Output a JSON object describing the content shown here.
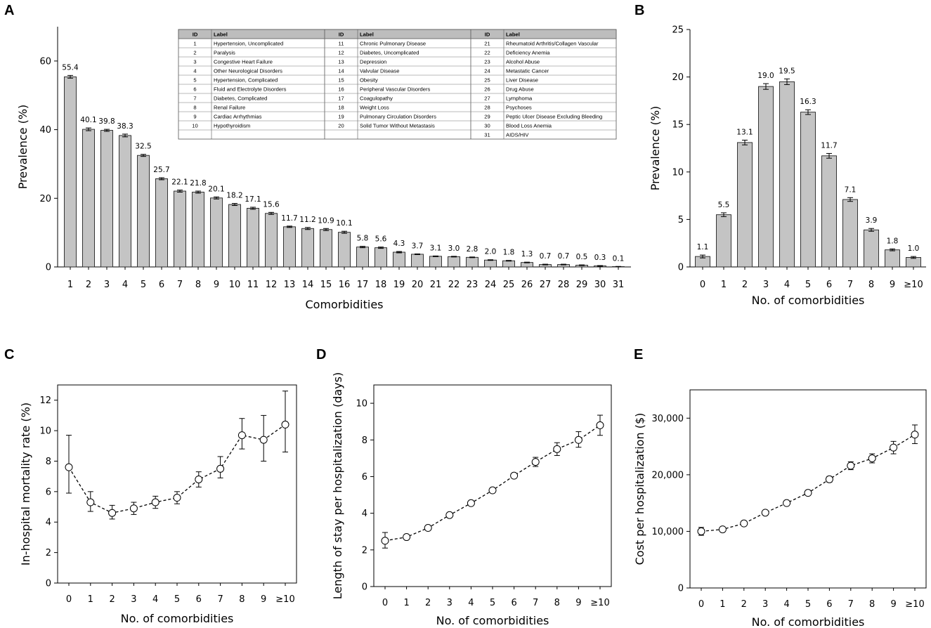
{
  "panels": {
    "A": "A",
    "B": "B",
    "C": "C",
    "D": "D",
    "E": "E"
  },
  "legend_table": {
    "columns": [
      {
        "id_header": "ID",
        "label_header": "Label"
      },
      {
        "id_header": "ID",
        "label_header": "Label"
      },
      {
        "id_header": "ID",
        "label_header": "Label"
      }
    ],
    "rows": [
      [
        {
          "id": "1",
          "label": "Hypertension, Uncomplicated"
        },
        {
          "id": "11",
          "label": "Chronic Pulmonary Disease"
        },
        {
          "id": "21",
          "label": "Rheumatoid Arthritis/Collagen Vascular"
        }
      ],
      [
        {
          "id": "2",
          "label": "Paralysis"
        },
        {
          "id": "12",
          "label": "Diabetes, Uncomplicated"
        },
        {
          "id": "22",
          "label": "Deficiency Anemia"
        }
      ],
      [
        {
          "id": "3",
          "label": "Congestive Heart Failure"
        },
        {
          "id": "13",
          "label": "Depression"
        },
        {
          "id": "23",
          "label": "Alcohol Abuse"
        }
      ],
      [
        {
          "id": "4",
          "label": "Other Neurological Disorders"
        },
        {
          "id": "14",
          "label": "Valvular Disease"
        },
        {
          "id": "24",
          "label": "Metastatic Cancer"
        }
      ],
      [
        {
          "id": "5",
          "label": "Hypertension, Complicated"
        },
        {
          "id": "15",
          "label": "Obesity"
        },
        {
          "id": "25",
          "label": "Liver Disease"
        }
      ],
      [
        {
          "id": "6",
          "label": "Fluid and Electrolyte Disorders"
        },
        {
          "id": "16",
          "label": "Peripheral Vascular Disorders"
        },
        {
          "id": "26",
          "label": "Drug Abuse"
        }
      ],
      [
        {
          "id": "7",
          "label": "Diabetes, Complicated"
        },
        {
          "id": "17",
          "label": "Coagulopathy"
        },
        {
          "id": "27",
          "label": "Lymphoma"
        }
      ],
      [
        {
          "id": "8",
          "label": "Renal Failure"
        },
        {
          "id": "18",
          "label": "Weight Loss"
        },
        {
          "id": "28",
          "label": "Psychoses"
        }
      ],
      [
        {
          "id": "9",
          "label": "Cardiac Arrhythmias"
        },
        {
          "id": "19",
          "label": "Pulmonary Circulation Disorders"
        },
        {
          "id": "29",
          "label": "Peptic Ulcer Disease Excluding Bleeding"
        }
      ],
      [
        {
          "id": "10",
          "label": "Hypothyroidism"
        },
        {
          "id": "20",
          "label": "Solid Tumor Without Metastasis"
        },
        {
          "id": "30",
          "label": "Blood Loss Anemia"
        }
      ],
      [
        {
          "id": "",
          "label": ""
        },
        {
          "id": "",
          "label": ""
        },
        {
          "id": "31",
          "label": "AIDS/HIV"
        }
      ]
    ]
  },
  "chart_data": [
    {
      "panel": "A",
      "type": "bar",
      "title": "",
      "xlabel": "Comorbidities",
      "ylabel": "Prevalence (%)",
      "ylim": [
        0,
        70
      ],
      "yticks": [
        0,
        20,
        40,
        60
      ],
      "categories": [
        "1",
        "2",
        "3",
        "4",
        "5",
        "6",
        "7",
        "8",
        "9",
        "10",
        "11",
        "12",
        "13",
        "14",
        "15",
        "16",
        "17",
        "18",
        "19",
        "20",
        "21",
        "22",
        "23",
        "24",
        "25",
        "26",
        "27",
        "28",
        "29",
        "30",
        "31"
      ],
      "values": [
        55.4,
        40.1,
        39.8,
        38.3,
        32.5,
        25.7,
        22.1,
        21.8,
        20.1,
        18.2,
        17.1,
        15.6,
        11.7,
        11.2,
        10.9,
        10.1,
        5.8,
        5.6,
        4.3,
        3.7,
        3.1,
        3.0,
        2.8,
        2.0,
        1.8,
        1.3,
        0.7,
        0.7,
        0.5,
        0.3,
        0.1
      ],
      "labels": [
        "55.4",
        "40.1",
        "39.8",
        "38.3",
        "32.5",
        "25.7",
        "22.1",
        "21.8",
        "20.1",
        "18.2",
        "17.1",
        "15.6",
        "11.7",
        "11.2",
        "10.9",
        "10.1",
        "5.8",
        "5.6",
        "4.3",
        "3.7",
        "3.1",
        "3.0",
        "2.8",
        "2.0",
        "1.8",
        "1.3",
        "0.7",
        "0.7",
        "0.5",
        "0.3",
        "0.1"
      ],
      "error": [
        0.4,
        0.4,
        0.3,
        0.4,
        0.3,
        0.3,
        0.3,
        0.3,
        0.3,
        0.3,
        0.3,
        0.3,
        0.2,
        0.3,
        0.3,
        0.3,
        0.2,
        0.2,
        0.2,
        0.1,
        0.1,
        0.1,
        0.1,
        0.1,
        0.1,
        0.1,
        0.1,
        0.1,
        0.1,
        0.1,
        0.05
      ]
    },
    {
      "panel": "B",
      "type": "bar",
      "title": "",
      "xlabel": "No. of comorbidities",
      "ylabel": "Prevalence (%)",
      "ylim": [
        0,
        25
      ],
      "yticks": [
        0,
        5,
        10,
        15,
        20,
        25
      ],
      "categories": [
        "0",
        "1",
        "2",
        "3",
        "4",
        "5",
        "6",
        "7",
        "8",
        "9",
        "≥10"
      ],
      "values": [
        1.1,
        5.5,
        13.1,
        19.0,
        19.5,
        16.3,
        11.7,
        7.1,
        3.9,
        1.8,
        1.0
      ],
      "labels": [
        "1.1",
        "5.5",
        "13.1",
        "19.0",
        "19.5",
        "16.3",
        "11.7",
        "7.1",
        "3.9",
        "1.8",
        "1.0"
      ],
      "error": [
        0.15,
        0.2,
        0.25,
        0.3,
        0.3,
        0.25,
        0.25,
        0.2,
        0.15,
        0.1,
        0.1
      ]
    },
    {
      "panel": "C",
      "type": "line",
      "title": "",
      "xlabel": "No. of comorbidities",
      "ylabel": "In-hospital mortality rate (%)",
      "ylim": [
        0,
        13
      ],
      "yticks": [
        0,
        2,
        4,
        6,
        8,
        10,
        12
      ],
      "ytick_labels": [
        "0",
        "2",
        "4",
        "6",
        "8",
        "10",
        "12"
      ],
      "categories": [
        "0",
        "1",
        "2",
        "3",
        "4",
        "5",
        "6",
        "7",
        "8",
        "9",
        "≥10"
      ],
      "values": [
        7.6,
        5.3,
        4.6,
        4.9,
        5.3,
        5.6,
        6.8,
        7.5,
        9.7,
        9.4,
        10.4
      ],
      "err_low": [
        5.9,
        4.7,
        4.2,
        4.5,
        4.9,
        5.2,
        6.3,
        6.9,
        8.8,
        8.0,
        8.6
      ],
      "err_high": [
        9.7,
        6.0,
        5.1,
        5.3,
        5.7,
        6.0,
        7.3,
        8.3,
        10.8,
        11.0,
        12.6
      ]
    },
    {
      "panel": "D",
      "type": "line",
      "title": "",
      "xlabel": "No. of comorbidities",
      "ylabel": "Length of stay per hospitalization (days)",
      "ylim": [
        0,
        11
      ],
      "yticks": [
        0,
        2,
        4,
        6,
        8,
        10
      ],
      "ytick_labels": [
        "0",
        "2",
        "4",
        "6",
        "8",
        "10"
      ],
      "categories": [
        "0",
        "1",
        "2",
        "3",
        "4",
        "5",
        "6",
        "7",
        "8",
        "9",
        "≥10"
      ],
      "values": [
        2.5,
        2.7,
        3.2,
        3.9,
        4.55,
        5.25,
        6.05,
        6.8,
        7.5,
        8.0,
        8.8
      ],
      "err_low": [
        2.1,
        2.6,
        3.1,
        3.8,
        4.45,
        5.15,
        5.95,
        6.55,
        7.15,
        7.6,
        8.25
      ],
      "err_high": [
        2.95,
        2.8,
        3.3,
        4.0,
        4.65,
        5.35,
        6.15,
        7.05,
        7.85,
        8.45,
        9.35
      ]
    },
    {
      "panel": "E",
      "type": "line",
      "title": "",
      "xlabel": "No. of comorbidities",
      "ylabel": "Cost per hospitalization ($)",
      "ylim": [
        0,
        35000
      ],
      "yticks": [
        0,
        10000,
        20000,
        30000
      ],
      "ytick_labels": [
        "0",
        "10,000",
        "20,000",
        "30,000"
      ],
      "categories": [
        "0",
        "1",
        "2",
        "3",
        "4",
        "5",
        "6",
        "7",
        "8",
        "9",
        "≥10"
      ],
      "values": [
        10000,
        10350,
        11400,
        13300,
        15000,
        16800,
        19200,
        21600,
        22900,
        24800,
        27100
      ],
      "err_low": [
        9300,
        10150,
        11200,
        13050,
        14800,
        16500,
        18700,
        20900,
        22100,
        23700,
        25500
      ],
      "err_high": [
        10700,
        10550,
        11600,
        13550,
        15200,
        17100,
        19700,
        22300,
        23700,
        25900,
        28800
      ]
    }
  ]
}
